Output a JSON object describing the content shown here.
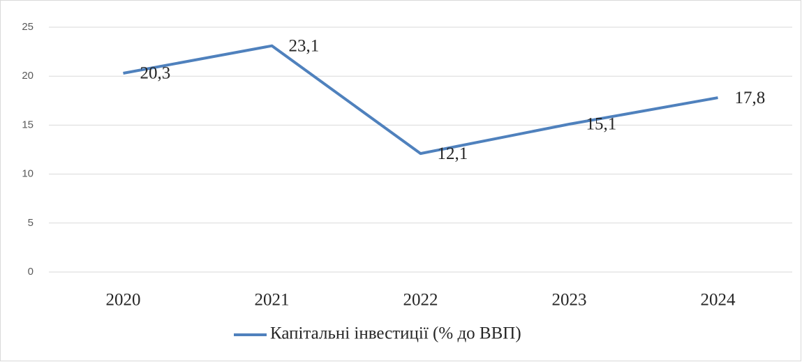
{
  "chart_data": {
    "type": "line",
    "categories": [
      "2020",
      "2021",
      "2022",
      "2023",
      "2024"
    ],
    "series": [
      {
        "name": "Капітальні інвестиції (% до ВВП)",
        "color": "#4f81bd",
        "values": [
          20.3,
          23.1,
          12.1,
          15.1,
          17.8
        ],
        "value_labels": [
          "20,3",
          "23,1",
          "12,1",
          "15,1",
          "17,8"
        ]
      }
    ],
    "ylim": [
      0,
      25
    ],
    "yticks": [
      0,
      5,
      10,
      15,
      20,
      25
    ],
    "grid": true,
    "legend": "bottom"
  }
}
